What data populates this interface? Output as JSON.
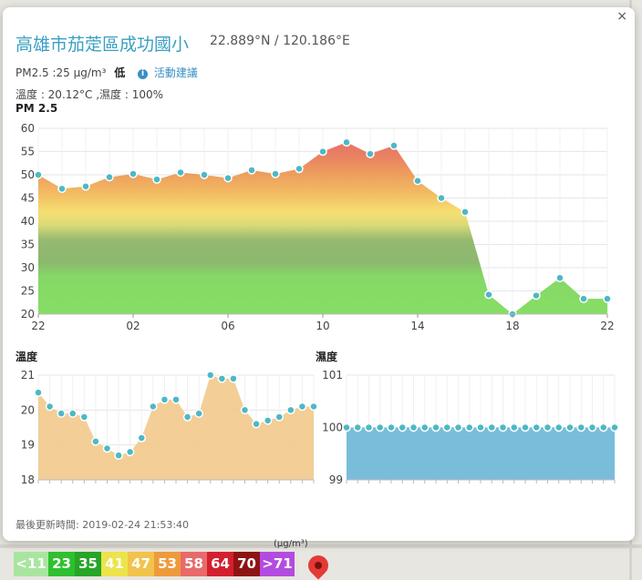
{
  "popup": {
    "close_label": "×",
    "title": "高雄市茄萣區成功國小",
    "coords": "22.889°N / 120.186°E",
    "pm_text": "PM2.5 :25 μg/m³",
    "level": "低",
    "advice_label": "活動建議",
    "temp_humidity": "溫度 : 20.12°C ,濕度 : 100%",
    "pm_section_title": "PM 2.5",
    "temp_section_title": "溫度",
    "humidity_section_title": "濕度",
    "updated": "最後更新時間: 2019-02-24 21:53:40"
  },
  "legend": {
    "unit": "(μg/m³)",
    "items": [
      {
        "label": "<11",
        "color": "#a8e6a0"
      },
      {
        "label": "23",
        "color": "#2ec02e"
      },
      {
        "label": "35",
        "color": "#27a527"
      },
      {
        "label": "41",
        "color": "#ece44a"
      },
      {
        "label": "47",
        "color": "#f2c34b"
      },
      {
        "label": "53",
        "color": "#ef9a3a"
      },
      {
        "label": "58",
        "color": "#e86a6a"
      },
      {
        "label": "64",
        "color": "#d3202e"
      },
      {
        "label": "70",
        "color": "#8e1414"
      },
      {
        "label": ">71",
        "color": "#b44be0"
      }
    ]
  },
  "chart_data": [
    {
      "type": "area",
      "title": "PM 2.5",
      "x": [
        22,
        23,
        24,
        1,
        2,
        3,
        4,
        5,
        6,
        7,
        8,
        9,
        10,
        11,
        12,
        13,
        14,
        15,
        16,
        17,
        18,
        19,
        20,
        21,
        22
      ],
      "xticks": [
        "22",
        "02",
        "06",
        "10",
        "14",
        "18",
        "22"
      ],
      "values": [
        50,
        47,
        47.5,
        49.5,
        50.2,
        49,
        50.5,
        50,
        49.3,
        51,
        50.2,
        51.3,
        55,
        57,
        54.5,
        56.3,
        48.7,
        45,
        42,
        24.2,
        20,
        24,
        27.8,
        23.3,
        23.3
      ],
      "ylim": [
        20,
        60
      ],
      "yticks": [
        20,
        25,
        30,
        35,
        40,
        45,
        50,
        55,
        60
      ],
      "grid": true
    },
    {
      "type": "area",
      "title": "溫度",
      "values": [
        20.5,
        20.1,
        19.9,
        19.9,
        19.8,
        19.1,
        18.9,
        18.7,
        18.8,
        19.2,
        20.1,
        20.3,
        20.3,
        19.8,
        19.9,
        21,
        20.9,
        20.9,
        20,
        19.6,
        19.7,
        19.8,
        20,
        20.1,
        20.1
      ],
      "ylim": [
        18,
        21
      ],
      "yticks": [
        18,
        19,
        20,
        21
      ],
      "color": "#f2c98c"
    },
    {
      "type": "area",
      "title": "濕度",
      "values": [
        100,
        100,
        100,
        100,
        100,
        100,
        100,
        100,
        100,
        100,
        100,
        100,
        100,
        100,
        100,
        100,
        100,
        100,
        100,
        100,
        100,
        100,
        100,
        100,
        100
      ],
      "ylim": [
        99,
        101
      ],
      "yticks": [
        99,
        100,
        101
      ],
      "color": "#73b9d8"
    }
  ]
}
